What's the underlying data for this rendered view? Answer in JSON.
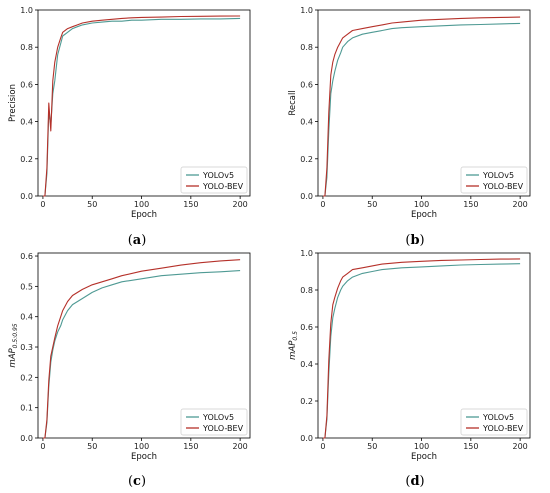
{
  "colors": {
    "yolov5": "#4f9a94",
    "yolobev": "#b5312a"
  },
  "chart_data": [
    {
      "type": "line",
      "caption_letter": "a",
      "ylabel": "Precision",
      "ylabel_sub": "",
      "xlabel": "Epoch",
      "xlim": [
        -5,
        210
      ],
      "ylim": [
        0,
        1.0
      ],
      "xticks": [
        0,
        50,
        100,
        150,
        200
      ],
      "yticks": [
        0.0,
        0.2,
        0.4,
        0.6,
        0.8,
        1.0
      ],
      "legend_position": "lower-right",
      "series": [
        {
          "name": "YOLOv5",
          "color_key": "yolov5",
          "x": [
            0,
            2,
            4,
            6,
            8,
            10,
            12,
            15,
            18,
            20,
            25,
            30,
            35,
            40,
            50,
            60,
            70,
            80,
            90,
            100,
            120,
            140,
            160,
            180,
            200
          ],
          "y": [
            0.0,
            0.0,
            0.12,
            0.45,
            0.38,
            0.55,
            0.62,
            0.76,
            0.82,
            0.86,
            0.88,
            0.9,
            0.91,
            0.92,
            0.93,
            0.935,
            0.94,
            0.94,
            0.945,
            0.945,
            0.95,
            0.95,
            0.952,
            0.952,
            0.955
          ]
        },
        {
          "name": "YOLO-BEV",
          "color_key": "yolobev",
          "x": [
            0,
            2,
            4,
            6,
            8,
            10,
            12,
            15,
            18,
            20,
            25,
            30,
            35,
            40,
            50,
            60,
            70,
            80,
            90,
            100,
            120,
            140,
            160,
            180,
            200
          ],
          "y": [
            0.0,
            0.0,
            0.15,
            0.5,
            0.35,
            0.62,
            0.72,
            0.8,
            0.85,
            0.88,
            0.9,
            0.91,
            0.92,
            0.93,
            0.94,
            0.945,
            0.95,
            0.955,
            0.958,
            0.96,
            0.962,
            0.965,
            0.966,
            0.967,
            0.968
          ]
        }
      ]
    },
    {
      "type": "line",
      "caption_letter": "b",
      "ylabel": "Recall",
      "ylabel_sub": "",
      "xlabel": "Epoch",
      "xlim": [
        -5,
        210
      ],
      "ylim": [
        0,
        1.0
      ],
      "xticks": [
        0,
        50,
        100,
        150,
        200
      ],
      "yticks": [
        0.0,
        0.2,
        0.4,
        0.6,
        0.8,
        1.0
      ],
      "legend_position": "lower-right",
      "series": [
        {
          "name": "YOLOv5",
          "color_key": "yolov5",
          "x": [
            0,
            2,
            4,
            6,
            8,
            10,
            12,
            15,
            18,
            20,
            25,
            30,
            40,
            50,
            60,
            70,
            80,
            100,
            120,
            140,
            160,
            180,
            200
          ],
          "y": [
            0.0,
            0.0,
            0.1,
            0.35,
            0.55,
            0.62,
            0.67,
            0.73,
            0.77,
            0.8,
            0.83,
            0.85,
            0.87,
            0.88,
            0.89,
            0.9,
            0.905,
            0.91,
            0.915,
            0.92,
            0.922,
            0.925,
            0.928
          ]
        },
        {
          "name": "YOLO-BEV",
          "color_key": "yolobev",
          "x": [
            0,
            2,
            4,
            6,
            8,
            10,
            12,
            15,
            18,
            20,
            25,
            30,
            40,
            50,
            60,
            70,
            80,
            100,
            120,
            140,
            160,
            180,
            200
          ],
          "y": [
            0.0,
            0.0,
            0.15,
            0.45,
            0.65,
            0.72,
            0.76,
            0.8,
            0.83,
            0.85,
            0.87,
            0.89,
            0.9,
            0.91,
            0.92,
            0.93,
            0.935,
            0.945,
            0.95,
            0.955,
            0.958,
            0.96,
            0.962
          ]
        }
      ]
    },
    {
      "type": "line",
      "caption_letter": "c",
      "ylabel": "mAP",
      "ylabel_sub": "0.5:0.95",
      "xlabel": "Epoch",
      "xlim": [
        -5,
        210
      ],
      "ylim": [
        0,
        0.61
      ],
      "xticks": [
        0,
        50,
        100,
        150,
        200
      ],
      "yticks": [
        0.0,
        0.1,
        0.2,
        0.3,
        0.4,
        0.5,
        0.6
      ],
      "legend_position": "lower-right",
      "series": [
        {
          "name": "YOLOv5",
          "color_key": "yolov5",
          "x": [
            0,
            2,
            4,
            6,
            8,
            10,
            12,
            15,
            18,
            20,
            25,
            30,
            40,
            50,
            60,
            70,
            80,
            100,
            120,
            140,
            160,
            180,
            200
          ],
          "y": [
            0.0,
            0.0,
            0.05,
            0.17,
            0.25,
            0.29,
            0.32,
            0.35,
            0.37,
            0.39,
            0.42,
            0.44,
            0.46,
            0.48,
            0.495,
            0.505,
            0.515,
            0.525,
            0.535,
            0.54,
            0.545,
            0.548,
            0.552
          ]
        },
        {
          "name": "YOLO-BEV",
          "color_key": "yolobev",
          "x": [
            0,
            2,
            4,
            6,
            8,
            10,
            12,
            15,
            18,
            20,
            25,
            30,
            40,
            50,
            60,
            70,
            80,
            100,
            120,
            140,
            160,
            180,
            200
          ],
          "y": [
            0.0,
            0.0,
            0.06,
            0.19,
            0.27,
            0.3,
            0.33,
            0.37,
            0.4,
            0.42,
            0.45,
            0.47,
            0.49,
            0.505,
            0.515,
            0.525,
            0.535,
            0.55,
            0.56,
            0.57,
            0.578,
            0.584,
            0.588
          ]
        }
      ]
    },
    {
      "type": "line",
      "caption_letter": "d",
      "ylabel": "mAP",
      "ylabel_sub": "0.5",
      "xlabel": "Epoch",
      "xlim": [
        -5,
        210
      ],
      "ylim": [
        0,
        1.0
      ],
      "xticks": [
        0,
        50,
        100,
        150,
        200
      ],
      "yticks": [
        0.0,
        0.2,
        0.4,
        0.6,
        0.8,
        1.0
      ],
      "legend_position": "lower-right",
      "series": [
        {
          "name": "YOLOv5",
          "color_key": "yolov5",
          "x": [
            0,
            2,
            4,
            6,
            8,
            10,
            12,
            15,
            18,
            20,
            25,
            30,
            40,
            50,
            60,
            70,
            80,
            100,
            120,
            140,
            160,
            180,
            200
          ],
          "y": [
            0.0,
            0.0,
            0.1,
            0.35,
            0.55,
            0.65,
            0.7,
            0.76,
            0.8,
            0.82,
            0.85,
            0.87,
            0.89,
            0.9,
            0.91,
            0.915,
            0.92,
            0.925,
            0.93,
            0.935,
            0.938,
            0.94,
            0.942
          ]
        },
        {
          "name": "YOLO-BEV",
          "color_key": "yolobev",
          "x": [
            0,
            2,
            4,
            6,
            8,
            10,
            12,
            15,
            18,
            20,
            25,
            30,
            40,
            50,
            60,
            70,
            80,
            100,
            120,
            140,
            160,
            180,
            200
          ],
          "y": [
            0.0,
            0.0,
            0.12,
            0.42,
            0.62,
            0.72,
            0.76,
            0.81,
            0.85,
            0.87,
            0.89,
            0.91,
            0.92,
            0.93,
            0.94,
            0.945,
            0.95,
            0.955,
            0.96,
            0.962,
            0.965,
            0.967,
            0.968
          ]
        }
      ]
    }
  ]
}
